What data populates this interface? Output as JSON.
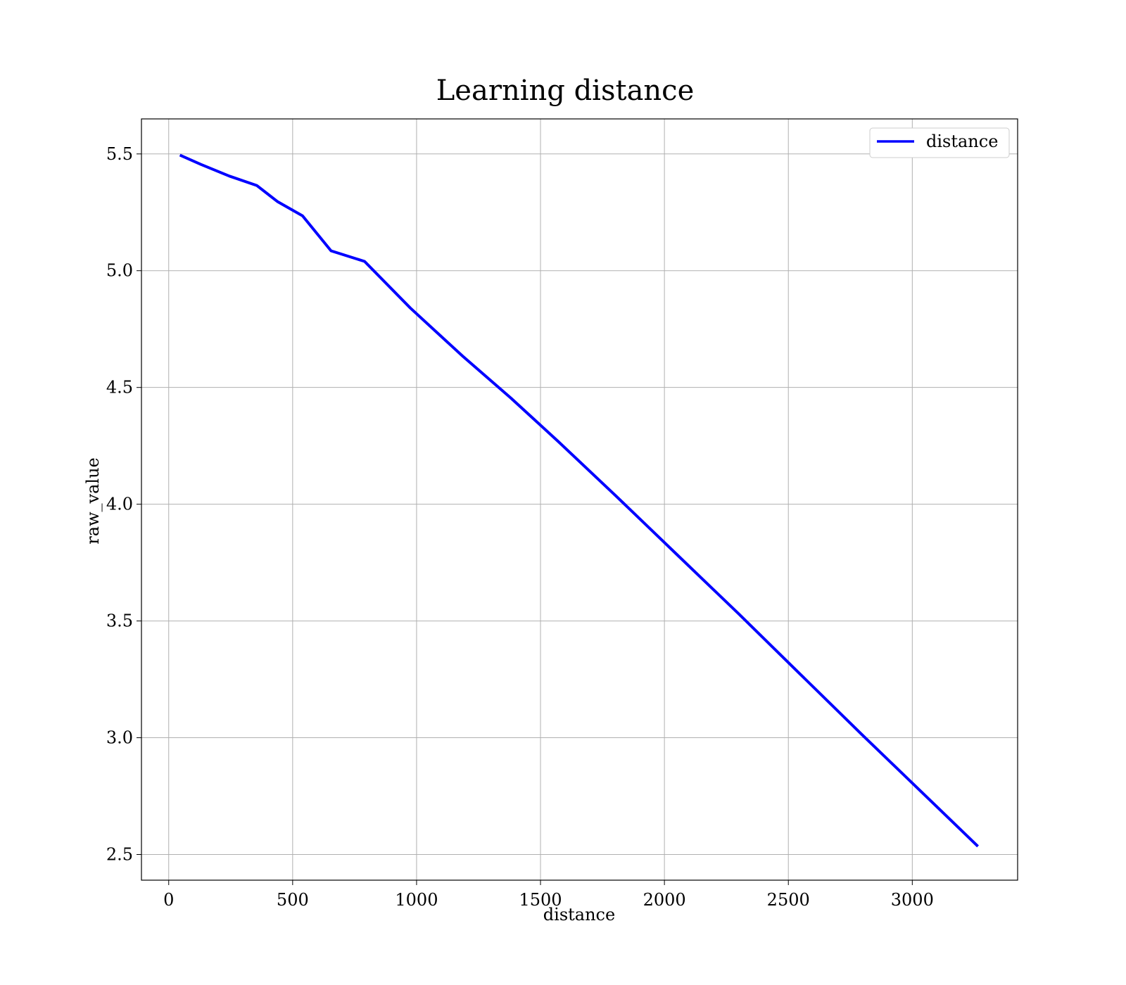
{
  "chart_data": {
    "type": "line",
    "title": "Learning distance",
    "xlabel": "distance",
    "ylabel": "raw_value",
    "xlim": [
      -110,
      3425
    ],
    "ylim": [
      2.39,
      5.65
    ],
    "xticks": [
      0,
      500,
      1000,
      1500,
      2000,
      2500,
      3000
    ],
    "xtick_labels": [
      "0",
      "500",
      "1000",
      "1500",
      "2000",
      "2500",
      "3000"
    ],
    "yticks": [
      2.5,
      3.0,
      3.5,
      4.0,
      4.5,
      5.0,
      5.5
    ],
    "ytick_labels": [
      "2.5",
      "3.0",
      "3.5",
      "4.0",
      "4.5",
      "5.0",
      "5.5"
    ],
    "grid": true,
    "legend_position": "top-right",
    "series": [
      {
        "name": "distance",
        "color": "#0000ff",
        "x": [
          45,
          130,
          245,
          355,
          440,
          540,
          655,
          790,
          975,
          1185,
          1380,
          1570,
          1800,
          2050,
          2300,
          2550,
          2800,
          3050,
          3265
        ],
        "y": [
          5.495,
          5.455,
          5.405,
          5.365,
          5.295,
          5.235,
          5.085,
          5.04,
          4.84,
          4.635,
          4.455,
          4.27,
          4.04,
          3.785,
          3.53,
          3.27,
          3.01,
          2.755,
          2.535
        ]
      }
    ]
  }
}
